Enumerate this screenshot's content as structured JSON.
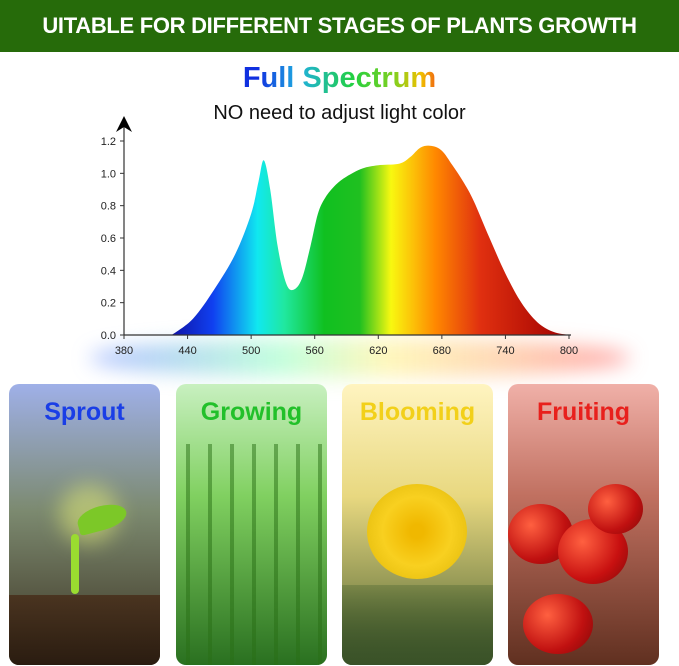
{
  "banner": {
    "text": "UITABLE FOR DIFFERENT STAGES OF PLANTS GROWTH",
    "color": "#266b0a"
  },
  "header": {
    "title": "Full Spectrum",
    "subtitle": "NO need to adjust light color"
  },
  "chart_data": {
    "type": "area",
    "title": "",
    "xlabel": "",
    "ylabel": "",
    "xlim": [
      380,
      800
    ],
    "ylim": [
      0,
      1.2
    ],
    "x_ticks": [
      "380",
      "440",
      "500",
      "560",
      "620",
      "680",
      "740",
      "800"
    ],
    "y_ticks": [
      "0.0",
      "0.2",
      "0.4",
      "0.6",
      "0.8",
      "1.0",
      "1.2"
    ],
    "grid": false,
    "x": [
      425,
      445,
      465,
      485,
      500,
      507,
      512,
      518,
      525,
      533,
      540,
      548,
      556,
      563,
      570,
      580,
      590,
      605,
      620,
      640,
      650,
      660,
      670,
      680,
      690,
      700,
      710,
      725,
      740,
      755,
      770,
      785,
      800
    ],
    "y": [
      0,
      0.1,
      0.28,
      0.5,
      0.75,
      0.95,
      1.08,
      0.9,
      0.55,
      0.32,
      0.28,
      0.35,
      0.55,
      0.75,
      0.85,
      0.93,
      0.98,
      1.03,
      1.05,
      1.06,
      1.1,
      1.16,
      1.17,
      1.14,
      1.05,
      0.95,
      0.83,
      0.6,
      0.38,
      0.2,
      0.08,
      0.02,
      0
    ]
  },
  "stages": [
    {
      "label": "Sprout",
      "color": "#1a3ee6"
    },
    {
      "label": "Growing",
      "color": "#22c02a"
    },
    {
      "label": "Blooming",
      "color": "#f2d01a"
    },
    {
      "label": "Fruiting",
      "color": "#e8201c"
    }
  ]
}
